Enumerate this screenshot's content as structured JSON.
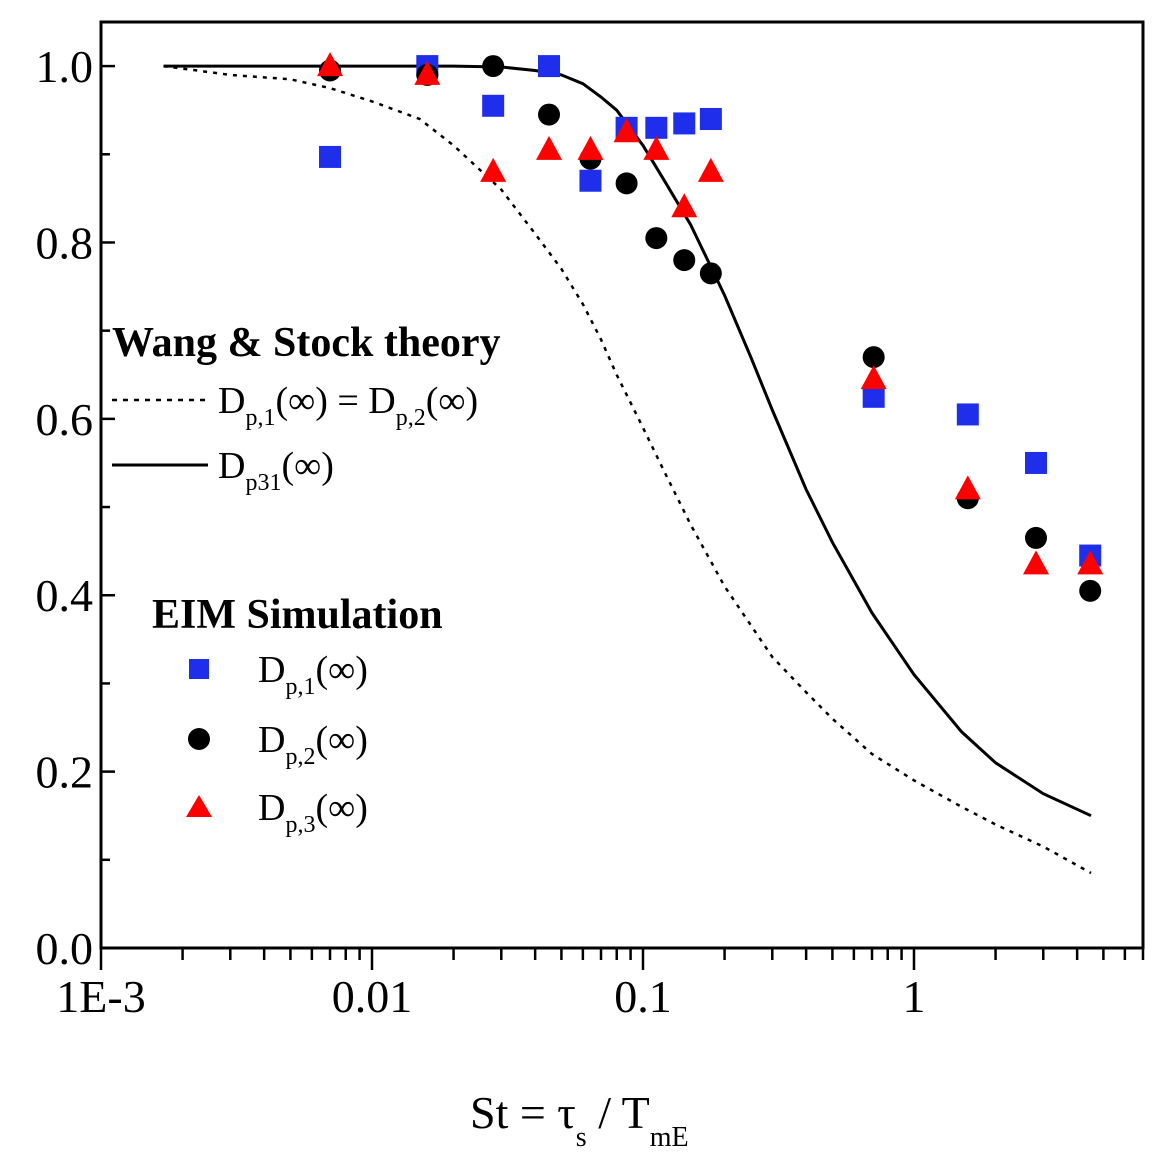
{
  "chart_data": {
    "type": "scatter",
    "title": "",
    "xscale": "log",
    "xlim": [
      0.001,
      7
    ],
    "ylim": [
      0.0,
      1.05
    ],
    "grid": false,
    "x_tick_labels": [
      {
        "value": 0.001,
        "label": "1E-3"
      },
      {
        "value": 0.01,
        "label": "0.01"
      },
      {
        "value": 0.1,
        "label": "0.1"
      },
      {
        "value": 1,
        "label": "1"
      }
    ],
    "y_tick_labels": [
      {
        "value": 0.0,
        "label": "0.0"
      },
      {
        "value": 0.2,
        "label": "0.2"
      },
      {
        "value": 0.4,
        "label": "0.4"
      },
      {
        "value": 0.6,
        "label": "0.6"
      },
      {
        "value": 0.8,
        "label": "0.8"
      },
      {
        "value": 1.0,
        "label": "1.0"
      }
    ],
    "xlabel": {
      "main": "St = τ",
      "sub1": "s",
      "mid": " / T",
      "sub2": "mE"
    },
    "legend": {
      "theory_heading": "Wang & Stock theory",
      "sim_heading": "EIM Simulation",
      "entries": [
        {
          "key": "theory_dotted",
          "main": "D",
          "sub": "p,1",
          "post": "(∞) = D",
          "sub2": "p,2",
          "post2": "(∞)"
        },
        {
          "key": "theory_solid",
          "main": "D",
          "sub": "p31",
          "post": "(∞)"
        },
        {
          "key": "sim_1",
          "main": "D",
          "sub": "p,1",
          "post": "(∞)"
        },
        {
          "key": "sim_2",
          "main": "D",
          "sub": "p,2",
          "post": "(∞)"
        },
        {
          "key": "sim_3",
          "main": "D",
          "sub": "p,3",
          "post": "(∞)"
        }
      ]
    },
    "series": [
      {
        "name": "D_p,1(∞) = D_p,2(∞)",
        "kind": "line",
        "style": "dotted",
        "color": "#000000",
        "x": [
          0.0017,
          0.003,
          0.005,
          0.007,
          0.01,
          0.015,
          0.02,
          0.03,
          0.04,
          0.05,
          0.06,
          0.07,
          0.08,
          0.1,
          0.12,
          0.15,
          0.2,
          0.3,
          0.4,
          0.5,
          0.7,
          1.0,
          1.5,
          2.0,
          3.0,
          4.5
        ],
        "values": [
          1.0,
          0.99,
          0.985,
          0.975,
          0.96,
          0.94,
          0.91,
          0.86,
          0.81,
          0.77,
          0.73,
          0.69,
          0.65,
          0.59,
          0.54,
          0.48,
          0.41,
          0.33,
          0.29,
          0.26,
          0.22,
          0.19,
          0.16,
          0.14,
          0.115,
          0.085
        ]
      },
      {
        "name": "D_p31(∞)",
        "kind": "line",
        "style": "solid",
        "color": "#000000",
        "x": [
          0.0017,
          0.005,
          0.01,
          0.02,
          0.03,
          0.04,
          0.05,
          0.06,
          0.07,
          0.08,
          0.1,
          0.12,
          0.15,
          0.2,
          0.25,
          0.3,
          0.4,
          0.5,
          0.7,
          1.0,
          1.5,
          2.0,
          3.0,
          4.5
        ],
        "values": [
          1.0,
          1.0,
          1.0,
          1.0,
          0.999,
          0.995,
          0.99,
          0.98,
          0.965,
          0.95,
          0.91,
          0.87,
          0.82,
          0.74,
          0.67,
          0.61,
          0.52,
          0.46,
          0.38,
          0.31,
          0.245,
          0.21,
          0.175,
          0.15
        ]
      },
      {
        "name": "D_p,1(∞)",
        "kind": "marker",
        "marker": "square",
        "color": "#1f2eea",
        "x": [
          0.007,
          0.016,
          0.028,
          0.045,
          0.064,
          0.087,
          0.112,
          0.142,
          0.178,
          0.71,
          1.58,
          2.82,
          4.47
        ],
        "values": [
          0.897,
          1.0,
          0.955,
          1.0,
          0.87,
          0.93,
          0.93,
          0.935,
          0.94,
          0.625,
          0.605,
          0.55,
          0.445
        ]
      },
      {
        "name": "D_p,2(∞)",
        "kind": "marker",
        "marker": "circle",
        "color": "#000000",
        "x": [
          0.007,
          0.016,
          0.028,
          0.045,
          0.064,
          0.087,
          0.112,
          0.142,
          0.178,
          0.71,
          1.58,
          2.82,
          4.47
        ],
        "values": [
          0.995,
          0.99,
          1.0,
          0.945,
          0.895,
          0.867,
          0.805,
          0.78,
          0.765,
          0.67,
          0.51,
          0.465,
          0.405
        ]
      },
      {
        "name": "D_p,3(∞)",
        "kind": "marker",
        "marker": "triangle",
        "color": "#ff0000",
        "x": [
          0.007,
          0.016,
          0.028,
          0.045,
          0.064,
          0.087,
          0.112,
          0.142,
          0.178,
          0.71,
          1.58,
          2.82,
          4.47
        ],
        "values": [
          1.0,
          0.99,
          0.88,
          0.905,
          0.905,
          0.925,
          0.905,
          0.84,
          0.88,
          0.645,
          0.52,
          0.435,
          0.435
        ]
      }
    ]
  }
}
